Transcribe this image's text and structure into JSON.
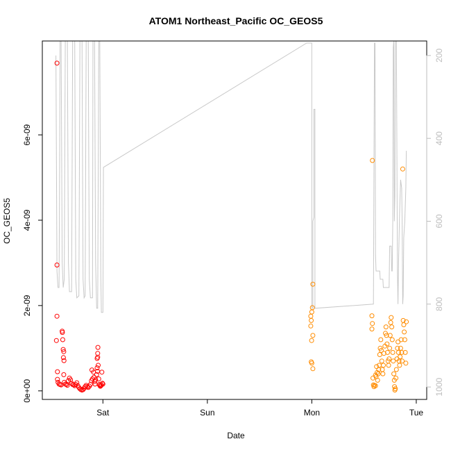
{
  "chart_data": {
    "type": "scatter",
    "title": "ATOM1 Northeast_Pacific OC_GEOS5",
    "xlabel": "Date",
    "ylabel": "OC_GEOS5",
    "x_ticks": [
      {
        "label": "Sat",
        "value": 1
      },
      {
        "label": "Sun",
        "value": 2
      },
      {
        "label": "Mon",
        "value": 3
      },
      {
        "label": "Tue",
        "value": 4
      }
    ],
    "xlim": [
      0.42,
      4.1
    ],
    "y_ticks": [
      {
        "label": "0e+00",
        "value": 0
      },
      {
        "label": "2e-09",
        "value": 2e-09
      },
      {
        "label": "4e-09",
        "value": 4e-09
      },
      {
        "label": "6e-09",
        "value": 6e-09
      }
    ],
    "ylim": [
      -2e-10,
      8.2e-09
    ],
    "y2_ticks": [
      {
        "label": "200",
        "value": 200
      },
      {
        "label": "400",
        "value": 400
      },
      {
        "label": "600",
        "value": 600
      },
      {
        "label": "800",
        "value": 800
      },
      {
        "label": "1000",
        "value": 1000
      }
    ],
    "y2lim": [
      1030,
      165
    ],
    "y2_reversed": true,
    "grid": false,
    "legend": "none",
    "colors": {
      "series_red": "#ff0000",
      "series_orange": "#ff8c00",
      "pressure_line": "#c8c8c8",
      "axis": "#000000",
      "secondary_axis": "#bdbdbd"
    },
    "series": [
      {
        "color": "#ff0000",
        "marker": "open-circle",
        "points": [
          [
            0.56,
            7.68e-09
          ],
          [
            0.56,
            2.95e-09
          ],
          [
            0.56,
            1.75e-09
          ],
          [
            0.555,
            1.18e-09
          ],
          [
            0.565,
            4.5e-10
          ],
          [
            0.565,
            2.7e-10
          ],
          [
            0.57,
            2e-10
          ],
          [
            0.58,
            1.6e-10
          ],
          [
            0.59,
            1.5e-10
          ],
          [
            0.6,
            1.4e-10
          ],
          [
            0.61,
            1.4e-09
          ],
          [
            0.612,
            1.37e-09
          ],
          [
            0.615,
            1.2e-09
          ],
          [
            0.62,
            9.7e-10
          ],
          [
            0.625,
            9.2e-10
          ],
          [
            0.622,
            7.8e-10
          ],
          [
            0.627,
            7.1e-10
          ],
          [
            0.625,
            3.8e-10
          ],
          [
            0.63,
            2e-10
          ],
          [
            0.64,
            1.6e-10
          ],
          [
            0.65,
            1.5e-10
          ],
          [
            0.66,
            1.3e-10
          ],
          [
            0.67,
            2.4e-10
          ],
          [
            0.68,
            3e-10
          ],
          [
            0.69,
            2.6e-10
          ],
          [
            0.7,
            1.8e-10
          ],
          [
            0.71,
            1.5e-10
          ],
          [
            0.72,
            1.4e-10
          ],
          [
            0.73,
            1.2e-10
          ],
          [
            0.74,
            1.5e-10
          ],
          [
            0.75,
            1.9e-10
          ],
          [
            0.76,
            1.2e-10
          ],
          [
            0.77,
            8e-11
          ],
          [
            0.78,
            5e-11
          ],
          [
            0.79,
            3e-11
          ],
          [
            0.8,
            2e-11
          ],
          [
            0.81,
            3e-11
          ],
          [
            0.82,
            6e-11
          ],
          [
            0.83,
            1e-10
          ],
          [
            0.84,
            1.3e-10
          ],
          [
            0.85,
            1e-10
          ],
          [
            0.86,
            8e-11
          ],
          [
            0.87,
            1.1e-10
          ],
          [
            0.88,
            1.5e-10
          ],
          [
            0.89,
            2.4e-10
          ],
          [
            0.9,
            2.8e-10
          ],
          [
            0.895,
            4.9e-10
          ],
          [
            0.91,
            4.4e-10
          ],
          [
            0.915,
            3.2e-10
          ],
          [
            0.92,
            2.2e-10
          ],
          [
            0.925,
            1.6e-10
          ],
          [
            0.93,
            2.6e-10
          ],
          [
            0.94,
            3.8e-10
          ],
          [
            0.945,
            5.4e-10
          ],
          [
            0.948,
            4.6e-10
          ],
          [
            0.95,
            8.8e-10
          ],
          [
            0.952,
            1.02e-09
          ],
          [
            0.945,
            7.6e-10
          ],
          [
            0.95,
            7.9e-10
          ],
          [
            0.955,
            6e-10
          ],
          [
            0.96,
            2.8e-10
          ],
          [
            0.965,
            1.5e-10
          ],
          [
            0.97,
            1.3e-10
          ],
          [
            0.975,
            1.1e-10
          ],
          [
            0.98,
            1.2e-10
          ],
          [
            0.985,
            1.4e-10
          ],
          [
            0.99,
            4.4e-10
          ],
          [
            0.995,
            1.8e-10
          ],
          [
            1.0,
            1.6e-10
          ]
        ]
      },
      {
        "color": "#ff8c00",
        "marker": "open-circle",
        "points": [
          [
            2.99,
            1.75e-09
          ],
          [
            2.995,
            1.65e-09
          ],
          [
            3.0,
            1.85e-09
          ],
          [
            3.005,
            1.95e-09
          ],
          [
            3.01,
            2.5e-09
          ],
          [
            2.99,
            1.52e-09
          ],
          [
            2.998,
            1.18e-09
          ],
          [
            3.01,
            1.3e-09
          ],
          [
            2.995,
            6.8e-10
          ],
          [
            3.0,
            6.5e-10
          ],
          [
            3.01,
            5.2e-10
          ],
          [
            3.58,
            5.4e-09
          ],
          [
            3.575,
            1.76e-09
          ],
          [
            3.58,
            1.58e-09
          ],
          [
            3.575,
            1.45e-09
          ],
          [
            3.585,
            3e-10
          ],
          [
            3.59,
            1.4e-10
          ],
          [
            3.595,
            1e-10
          ],
          [
            3.6,
            1.3e-10
          ],
          [
            3.61,
            1.2e-10
          ],
          [
            3.61,
            3.7e-10
          ],
          [
            3.615,
            3.3e-10
          ],
          [
            3.62,
            5.7e-10
          ],
          [
            3.625,
            4.3e-10
          ],
          [
            3.63,
            2.5e-10
          ],
          [
            3.635,
            4e-10
          ],
          [
            3.64,
            5e-10
          ],
          [
            3.645,
            6e-10
          ],
          [
            3.65,
            8.5e-10
          ],
          [
            3.655,
            1e-09
          ],
          [
            3.66,
            1.2e-09
          ],
          [
            3.665,
            9.5e-10
          ],
          [
            3.67,
            7e-10
          ],
          [
            3.675,
            5e-10
          ],
          [
            3.68,
            4e-10
          ],
          [
            3.685,
            6e-10
          ],
          [
            3.69,
            8.8e-10
          ],
          [
            3.7,
            1.05e-09
          ],
          [
            3.705,
            1.35e-09
          ],
          [
            3.71,
            1.5e-09
          ],
          [
            3.715,
            1.3e-09
          ],
          [
            3.72,
            1.1e-09
          ],
          [
            3.725,
            9e-10
          ],
          [
            3.73,
            7e-10
          ],
          [
            3.735,
            6e-10
          ],
          [
            3.74,
            7.5e-10
          ],
          [
            3.745,
            1e-09
          ],
          [
            3.75,
            1.3e-09
          ],
          [
            3.755,
            1.6e-09
          ],
          [
            3.76,
            1.72e-09
          ],
          [
            3.765,
            1.5e-09
          ],
          [
            3.77,
            1.2e-09
          ],
          [
            3.775,
            9e-10
          ],
          [
            3.78,
            7e-10
          ],
          [
            3.785,
            4e-10
          ],
          [
            3.79,
            2.5e-10
          ],
          [
            3.792,
            1e-10
          ],
          [
            3.795,
            2e-11
          ],
          [
            3.8,
            5e-11
          ],
          [
            3.805,
            3e-10
          ],
          [
            3.81,
            5e-10
          ],
          [
            3.815,
            7.5e-10
          ],
          [
            3.82,
            1e-09
          ],
          [
            3.825,
            1.15e-09
          ],
          [
            3.83,
            9e-10
          ],
          [
            3.835,
            7e-10
          ],
          [
            3.84,
            6e-10
          ],
          [
            3.845,
            8e-10
          ],
          [
            3.85,
            1e-09
          ],
          [
            3.855,
            1.2e-09
          ],
          [
            3.86,
            9e-10
          ],
          [
            3.865,
            7e-10
          ],
          [
            3.87,
            5.2e-09
          ],
          [
            3.875,
            1.65e-09
          ],
          [
            3.88,
            1.55e-09
          ],
          [
            3.885,
            1.38e-09
          ],
          [
            3.89,
            1.2e-09
          ],
          [
            3.895,
            9e-10
          ],
          [
            3.9,
            6.5e-10
          ],
          [
            3.905,
            1.62e-09
          ]
        ]
      }
    ],
    "pressure_line": {
      "color": "#c8c8c8",
      "axis": "right",
      "points": [
        [
          0.55,
          200
        ],
        [
          0.56,
          720
        ],
        [
          0.57,
          760
        ],
        [
          0.58,
          760
        ],
        [
          0.585,
          520
        ],
        [
          0.59,
          165
        ],
        [
          0.6,
          165
        ],
        [
          0.61,
          700
        ],
        [
          0.62,
          760
        ],
        [
          0.63,
          740
        ],
        [
          0.64,
          165
        ],
        [
          0.66,
          165
        ],
        [
          0.67,
          700
        ],
        [
          0.68,
          770
        ],
        [
          0.7,
          770
        ],
        [
          0.71,
          165
        ],
        [
          0.73,
          165
        ],
        [
          0.74,
          740
        ],
        [
          0.75,
          785
        ],
        [
          0.77,
          780
        ],
        [
          0.78,
          165
        ],
        [
          0.8,
          165
        ],
        [
          0.81,
          740
        ],
        [
          0.82,
          785
        ],
        [
          0.83,
          780
        ],
        [
          0.84,
          165
        ],
        [
          0.86,
          165
        ],
        [
          0.87,
          740
        ],
        [
          0.88,
          785
        ],
        [
          0.9,
          785
        ],
        [
          0.905,
          165
        ],
        [
          0.92,
          165
        ],
        [
          0.93,
          700
        ],
        [
          0.94,
          810
        ],
        [
          0.95,
          810
        ],
        [
          0.96,
          165
        ],
        [
          0.97,
          165
        ],
        [
          0.98,
          730
        ],
        [
          0.985,
          820
        ],
        [
          1.0,
          820
        ],
        [
          1.005,
          470
        ],
        [
          2.95,
          170
        ],
        [
          3.0,
          170
        ],
        [
          3.0,
          810
        ],
        [
          3.01,
          810
        ],
        [
          3.01,
          600
        ],
        [
          3.02,
          590
        ],
        [
          3.02,
          330
        ],
        [
          3.03,
          330
        ],
        [
          3.03,
          810
        ],
        [
          3.59,
          800
        ],
        [
          3.6,
          170
        ],
        [
          3.605,
          170
        ],
        [
          3.61,
          680
        ],
        [
          3.615,
          720
        ],
        [
          3.65,
          720
        ],
        [
          3.655,
          740
        ],
        [
          3.68,
          740
        ],
        [
          3.685,
          760
        ],
        [
          3.74,
          760
        ],
        [
          3.745,
          660
        ],
        [
          3.76,
          660
        ],
        [
          3.765,
          720
        ],
        [
          3.77,
          720
        ],
        [
          3.775,
          600
        ],
        [
          3.78,
          180
        ],
        [
          3.785,
          165
        ],
        [
          3.79,
          600
        ],
        [
          3.795,
          540
        ],
        [
          3.8,
          165
        ],
        [
          3.81,
          165
        ],
        [
          3.82,
          720
        ],
        [
          3.825,
          800
        ],
        [
          3.83,
          700
        ],
        [
          3.84,
          580
        ],
        [
          3.85,
          500
        ],
        [
          3.86,
          520
        ],
        [
          3.865,
          600
        ],
        [
          3.87,
          800
        ],
        [
          3.875,
          780
        ],
        [
          3.88,
          640
        ],
        [
          3.89,
          600
        ],
        [
          3.9,
          520
        ],
        [
          3.905,
          430
        ]
      ]
    }
  }
}
